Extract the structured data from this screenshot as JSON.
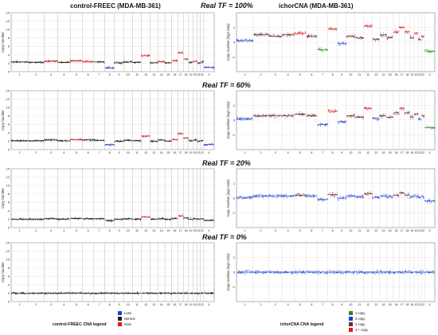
{
  "columns": {
    "left_title": "control-FREEC (MDA-MB-361)",
    "right_title": "ichorCNA (MDA-MB-361)"
  },
  "colors": {
    "loss": "#1f3fd6",
    "normal": "#222222",
    "gain": "#e01919",
    "copy1": "#2a8a2a",
    "copy2": "#1f3fd6",
    "copy3": "#6b2f2f",
    "copy4plus": "#e01919"
  },
  "chart_data": [
    {
      "type": "scatter",
      "panel": "control-FREEC",
      "title": "Real TF = 100%",
      "ylabel": "Copy Number",
      "ylim": [
        0,
        14
      ],
      "yticks": [
        0,
        2,
        4,
        6,
        8,
        10,
        12,
        14
      ],
      "categories": [
        "1",
        "2",
        "3",
        "4",
        "5",
        "6",
        "7",
        "8",
        "9",
        "10",
        "11",
        "12",
        "13",
        "14",
        "15",
        "16",
        "17",
        "18",
        "19",
        "20",
        "21",
        "22",
        "X"
      ],
      "segments_copy_number": [
        2.3,
        2.2,
        2.5,
        2.2,
        2.6,
        2.4,
        2.3,
        0.9,
        2.1,
        2.3,
        2.2,
        3.8,
        2.1,
        2.4,
        2.1,
        2.6,
        4.5,
        3.0,
        2.2,
        2.4,
        2.1,
        2.3,
        1.0
      ]
    },
    {
      "type": "scatter",
      "panel": "ichorCNA",
      "title": "Real TF = 100%",
      "ylabel": "Copy Number (log2 ratio)",
      "ylim": [
        -2,
        2
      ],
      "yticks": [
        -1,
        0,
        1
      ],
      "categories": [
        "1",
        "2",
        "3",
        "4",
        "5",
        "6",
        "7",
        "8",
        "9",
        "10",
        "11",
        "12",
        "13",
        "14",
        "15",
        "16",
        "17",
        "18",
        "19",
        "20",
        "21",
        "22",
        "X"
      ],
      "segments_log2": [
        0.1,
        0.5,
        0.4,
        0.5,
        0.6,
        0.4,
        -0.5,
        0.9,
        -0.1,
        0.4,
        0.3,
        1.1,
        0.2,
        0.5,
        0.3,
        0.7,
        1.0,
        0.7,
        0.3,
        0.6,
        0.2,
        0.4,
        -0.6
      ]
    },
    {
      "type": "scatter",
      "panel": "control-FREEC",
      "title": "Real TF = 60%",
      "ylabel": "Copy Number",
      "ylim": [
        0,
        14
      ],
      "yticks": [
        0,
        2,
        4,
        6,
        8,
        10,
        12,
        14
      ],
      "categories": [
        "1",
        "2",
        "3",
        "4",
        "5",
        "6",
        "7",
        "8",
        "9",
        "10",
        "11",
        "12",
        "13",
        "14",
        "15",
        "16",
        "17",
        "18",
        "19",
        "20",
        "21",
        "22",
        "X"
      ],
      "segments_copy_number": [
        2.1,
        2.1,
        2.3,
        2.1,
        2.4,
        2.3,
        2.2,
        1.2,
        2.0,
        2.2,
        2.1,
        3.2,
        2.0,
        2.3,
        2.0,
        2.4,
        3.8,
        2.7,
        2.1,
        2.3,
        2.0,
        2.2,
        1.2
      ]
    },
    {
      "type": "scatter",
      "panel": "ichorCNA",
      "title": "Real TF = 60%",
      "ylabel": "Copy Number (log2 ratio)",
      "ylim": [
        -2,
        2
      ],
      "yticks": [
        -1,
        0,
        1
      ],
      "categories": [
        "1",
        "2",
        "3",
        "4",
        "5",
        "6",
        "7",
        "8",
        "9",
        "10",
        "11",
        "12",
        "13",
        "14",
        "15",
        "16",
        "17",
        "18",
        "19",
        "20",
        "21",
        "22",
        "X"
      ],
      "segments_log2": [
        0.1,
        0.3,
        0.3,
        0.3,
        0.4,
        0.3,
        -0.3,
        0.6,
        -0.1,
        0.3,
        0.2,
        0.8,
        0.1,
        0.3,
        0.2,
        0.5,
        0.8,
        0.5,
        0.2,
        0.4,
        0.1,
        0.3,
        -0.5
      ]
    },
    {
      "type": "scatter",
      "panel": "control-FREEC",
      "title": "Real TF = 20%",
      "ylabel": "Copy Number",
      "ylim": [
        0,
        14
      ],
      "yticks": [
        0,
        2,
        4,
        6,
        8,
        10,
        12,
        14
      ],
      "categories": [
        "1",
        "2",
        "3",
        "4",
        "5",
        "6",
        "7",
        "8",
        "9",
        "10",
        "11",
        "12",
        "13",
        "14",
        "15",
        "16",
        "17",
        "18",
        "19",
        "20",
        "21",
        "22",
        "X"
      ],
      "segments_copy_number": [
        2.0,
        2.0,
        2.1,
        2.0,
        2.2,
        2.1,
        2.1,
        1.7,
        2.0,
        2.1,
        2.0,
        2.5,
        2.0,
        2.1,
        2.0,
        2.2,
        2.8,
        2.3,
        2.0,
        2.1,
        2.0,
        2.1,
        1.7
      ]
    },
    {
      "type": "scatter",
      "panel": "ichorCNA",
      "title": "Real TF = 20%",
      "ylabel": "Copy Number (log2 ratio)",
      "ylim": [
        -2,
        2
      ],
      "yticks": [
        -1,
        0,
        1
      ],
      "categories": [
        "1",
        "2",
        "3",
        "4",
        "5",
        "6",
        "7",
        "8",
        "9",
        "10",
        "11",
        "12",
        "13",
        "14",
        "15",
        "16",
        "17",
        "18",
        "19",
        "20",
        "21",
        "22",
        "X"
      ],
      "segments_log2": [
        0.05,
        0.15,
        0.15,
        0.15,
        0.2,
        0.15,
        -0.1,
        0.25,
        0.0,
        0.15,
        0.1,
        0.3,
        0.05,
        0.15,
        0.1,
        0.2,
        0.35,
        0.2,
        0.1,
        0.15,
        0.05,
        0.1,
        -0.2
      ]
    },
    {
      "type": "scatter",
      "panel": "control-FREEC",
      "title": "Real TF = 0%",
      "ylabel": "Copy Number",
      "ylim": [
        0,
        14
      ],
      "yticks": [
        0,
        2,
        4,
        6,
        8,
        10,
        12,
        14
      ],
      "categories": [
        "1",
        "2",
        "3",
        "4",
        "5",
        "6",
        "7",
        "8",
        "9",
        "10",
        "11",
        "12",
        "13",
        "14",
        "15",
        "16",
        "17",
        "18",
        "19",
        "20",
        "21",
        "22",
        "X"
      ],
      "segments_copy_number": [
        2.0,
        2.0,
        2.0,
        2.0,
        2.0,
        2.0,
        2.0,
        2.0,
        2.0,
        2.0,
        2.0,
        2.0,
        2.0,
        2.0,
        2.0,
        2.0,
        2.0,
        2.0,
        2.0,
        2.0,
        2.0,
        2.0,
        2.0
      ]
    },
    {
      "type": "scatter",
      "panel": "ichorCNA",
      "title": "Real TF = 0%",
      "ylabel": "Copy Number (log2 ratio)",
      "ylim": [
        -2,
        2
      ],
      "yticks": [
        -1,
        0,
        1
      ],
      "categories": [
        "1",
        "2",
        "3",
        "4",
        "5",
        "6",
        "7",
        "8",
        "9",
        "10",
        "11",
        "12",
        "13",
        "14",
        "15",
        "16",
        "17",
        "18",
        "19",
        "20",
        "21",
        "22",
        "X"
      ],
      "segments_log2": [
        0.0,
        0.0,
        0.0,
        0.0,
        0.0,
        0.0,
        0.0,
        0.0,
        0.0,
        0.0,
        0.0,
        0.0,
        0.0,
        0.0,
        0.0,
        0.0,
        0.0,
        0.0,
        0.0,
        0.0,
        0.0,
        0.0,
        0.0
      ]
    }
  ],
  "legends": {
    "freec": {
      "title": "control-FREEC CNA legend",
      "items": [
        {
          "label": "Loss",
          "color": "#1f3fd6"
        },
        {
          "label": "Normal",
          "color": "#222222"
        },
        {
          "label": "Gain",
          "color": "#e01919"
        }
      ]
    },
    "ichor": {
      "title": "ichorCNA CNA legend",
      "items": [
        {
          "label": "1 copy",
          "color": "#2a8a2a"
        },
        {
          "label": "2 copy",
          "color": "#1f3fd6"
        },
        {
          "label": "3 copy",
          "color": "#6b2f2f"
        },
        {
          "label": "4 + copy",
          "color": "#e01919"
        }
      ]
    }
  }
}
